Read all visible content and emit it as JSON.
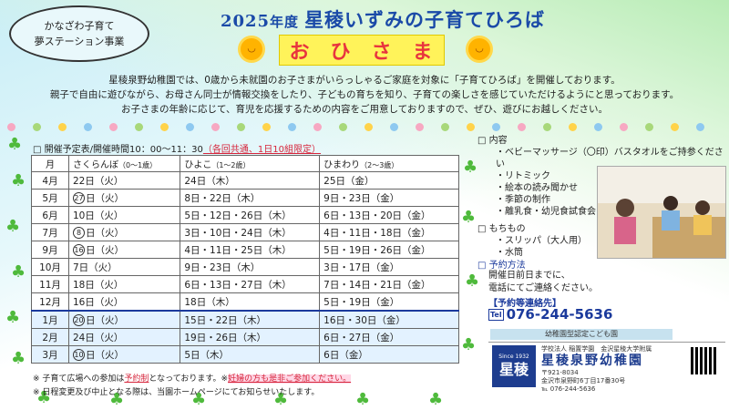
{
  "badge": {
    "line1": "かなざわ子育て",
    "line2": "夢ステーション事業"
  },
  "title": {
    "year": "2025",
    "nendo": "年度",
    "main": "星稜いずみの子育てひろば"
  },
  "ohisama": [
    "お",
    "ひ",
    "さ",
    "ま"
  ],
  "intro": [
    "星稜泉野幼稚園では、0歳から未就園のお子さまがいらっしゃるご家庭を対象に「子育てひろば」を開催しております。",
    "親子で自由に遊びながら、お母さん同士が情報交換をしたり、子どもの育ちを知り、子育ての楽しさを感じていただけるようにと思っております。",
    "お子さまの年齢に応じて、育児を応援するための内容をご用意しておりますので、ぜひ、遊びにお越しください。"
  ],
  "schedule": {
    "heading": "□ 開催予定表/開催時間10：00～11：30",
    "heading_note": "（各回共通、1日10組限定）",
    "headers": {
      "month": "月",
      "sakuranbo": "さくらんぼ",
      "sakuranbo_age": "（0～1歳）",
      "hiyoko": "ひよこ",
      "hiyoko_age": "（1～2歳）",
      "himawari": "ひまわり",
      "himawari_age": "（2～3歳）"
    },
    "rows": [
      {
        "month": "4月",
        "circ": "",
        "sakuranbo": "22日（火）",
        "hiyoko": "24日（木）",
        "himawari": "25日（金）"
      },
      {
        "month": "5月",
        "circ": "27",
        "sakuranbo": "日（火）",
        "hiyoko": "8日・22日（木）",
        "himawari": "9日・23日（金）"
      },
      {
        "month": "6月",
        "circ": "",
        "sakuranbo": "10日（火）",
        "hiyoko": "5日・12日・26日（木）",
        "himawari": "6日・13日・20日（金）"
      },
      {
        "month": "7月",
        "circ": "8",
        "sakuranbo": "日（火）",
        "hiyoko": "3日・10日・24日（木）",
        "himawari": "4日・11日・18日（金）"
      },
      {
        "month": "9月",
        "circ": "16",
        "sakuranbo": "日（火）",
        "hiyoko": "4日・11日・25日（木）",
        "himawari": "5日・19日・26日（金）"
      },
      {
        "month": "10月",
        "circ": "",
        "sakuranbo": "7日（火）",
        "hiyoko": "9日・23日（木）",
        "himawari": "3日・17日（金）"
      },
      {
        "month": "11月",
        "circ": "",
        "sakuranbo": "18日（火）",
        "hiyoko": "6日・13日・27日（木）",
        "himawari": "7日・14日・21日（金）"
      },
      {
        "month": "12月",
        "circ": "",
        "sakuranbo": "16日（火）",
        "hiyoko": "18日（木）",
        "himawari": "5日・19日（金）"
      },
      {
        "month": "1月",
        "circ": "20",
        "sakuranbo": "日（火）",
        "hiyoko": "15日・22日（木）",
        "himawari": "16日・30日（金）"
      },
      {
        "month": "2月",
        "circ": "",
        "sakuranbo": "24日（火）",
        "hiyoko": "19日・26日（木）",
        "himawari": "6日・27日（金）"
      },
      {
        "month": "3月",
        "circ": "10",
        "sakuranbo": "日（火）",
        "hiyoko": "5日（木）",
        "himawari": "6日（金）"
      }
    ]
  },
  "footnotes": {
    "f1a": "※ 子育て広場への参加は",
    "f1b": "予約制",
    "f1c": "となっております。※",
    "f1d": "妊婦の方も是非ご参加ください。",
    "f2": "※ 日程変更及び中止となる際は、当園ホームページにてお知らせいたします。"
  },
  "content": {
    "title": "□ 内容",
    "items": [
      "ベビーマッサージ（〇印）バスタオルをご持参ください",
      "リトミック",
      "絵本の読み聞かせ",
      "季節の制作",
      "離乳食・幼児食試食会"
    ]
  },
  "belongings": {
    "title": "□ もちもの",
    "items": [
      "スリッパ（大人用）",
      "水筒"
    ]
  },
  "reservation": {
    "title": "□ 予約方法",
    "line1": "開催日前日までに、",
    "line2": "電話にてご連絡ください。",
    "contact": "【予約等連絡先】",
    "tel_label": "Tel",
    "phone": "076-244-5636"
  },
  "certification": "幼稚園型認定こども園",
  "school": {
    "since": "Since 1932",
    "logo": "星稜",
    "org": "学校法人 稲置学園　金沢星稜大学附属",
    "name": "星稜泉野幼稚園",
    "postal": "〒921-8034",
    "address": "金沢市泉野町6丁目17番30号",
    "tel": "℡ 076-244-5636"
  },
  "colors": {
    "title_blue": "#1a4aa8",
    "ohisama_red": "#e8343e",
    "ohisama_bg": "#fff35a",
    "clover_green": "#4fba3c",
    "accent_red": "#d6263c",
    "logo_navy": "#1e3d8f"
  }
}
